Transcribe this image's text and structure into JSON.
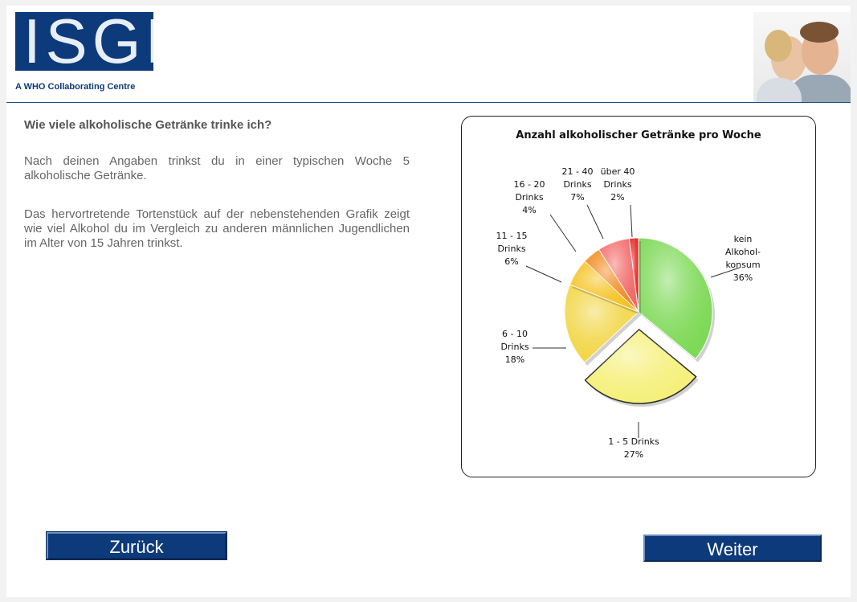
{
  "header": {
    "logo_text": "ISGF",
    "tagline": "A WHO Collaborating Centre"
  },
  "content": {
    "question": "Wie viele alkoholische Getränke trinke ich?",
    "paragraph1": "Nach deinen Angaben trinkst du in einer typischen Woche 5 alkoholische Getränke.",
    "paragraph2": "Das hervortretende Tortenstück auf der nebenstehenden Grafik zeigt wie viel Alkohol du im Vergleich zu anderen männlichen Jugendlichen im Alter von 15 Jahren trinkst."
  },
  "chart_data": {
    "type": "pie",
    "title": "Anzahl alkoholischer Getränke pro Woche",
    "slices": [
      {
        "label": "kein Alkohol-konsum",
        "lines": [
          "kein",
          "Alkohol-",
          "konsum",
          "36%"
        ],
        "value": 36,
        "color": "#7ed957",
        "exploded": false
      },
      {
        "label": "1 - 5 Drinks",
        "lines": [
          "1 - 5 Drinks",
          "27%"
        ],
        "value": 27,
        "color": "#f5f07a",
        "exploded": true
      },
      {
        "label": "6 - 10 Drinks",
        "lines": [
          "6 - 10",
          "Drinks",
          "18%"
        ],
        "value": 18,
        "color": "#f2d646",
        "exploded": false
      },
      {
        "label": "11 - 15 Drinks",
        "lines": [
          "11 - 15",
          "Drinks",
          "6%"
        ],
        "value": 6,
        "color": "#f5c21f",
        "exploded": false
      },
      {
        "label": "16 - 20 Drinks",
        "lines": [
          "16 - 20",
          "Drinks",
          "4%"
        ],
        "value": 4,
        "color": "#f08a1c",
        "exploded": false
      },
      {
        "label": "21 - 40 Drinks",
        "lines": [
          "21 - 40",
          "Drinks",
          "7%"
        ],
        "value": 7,
        "color": "#f26a6a",
        "exploded": false
      },
      {
        "label": "über 40 Drinks",
        "lines": [
          "über 40",
          "Drinks",
          "2%"
        ],
        "value": 2,
        "color": "#e82020",
        "exploded": false
      }
    ]
  },
  "nav": {
    "back_label": "Zurück",
    "next_label": "Weiter"
  }
}
